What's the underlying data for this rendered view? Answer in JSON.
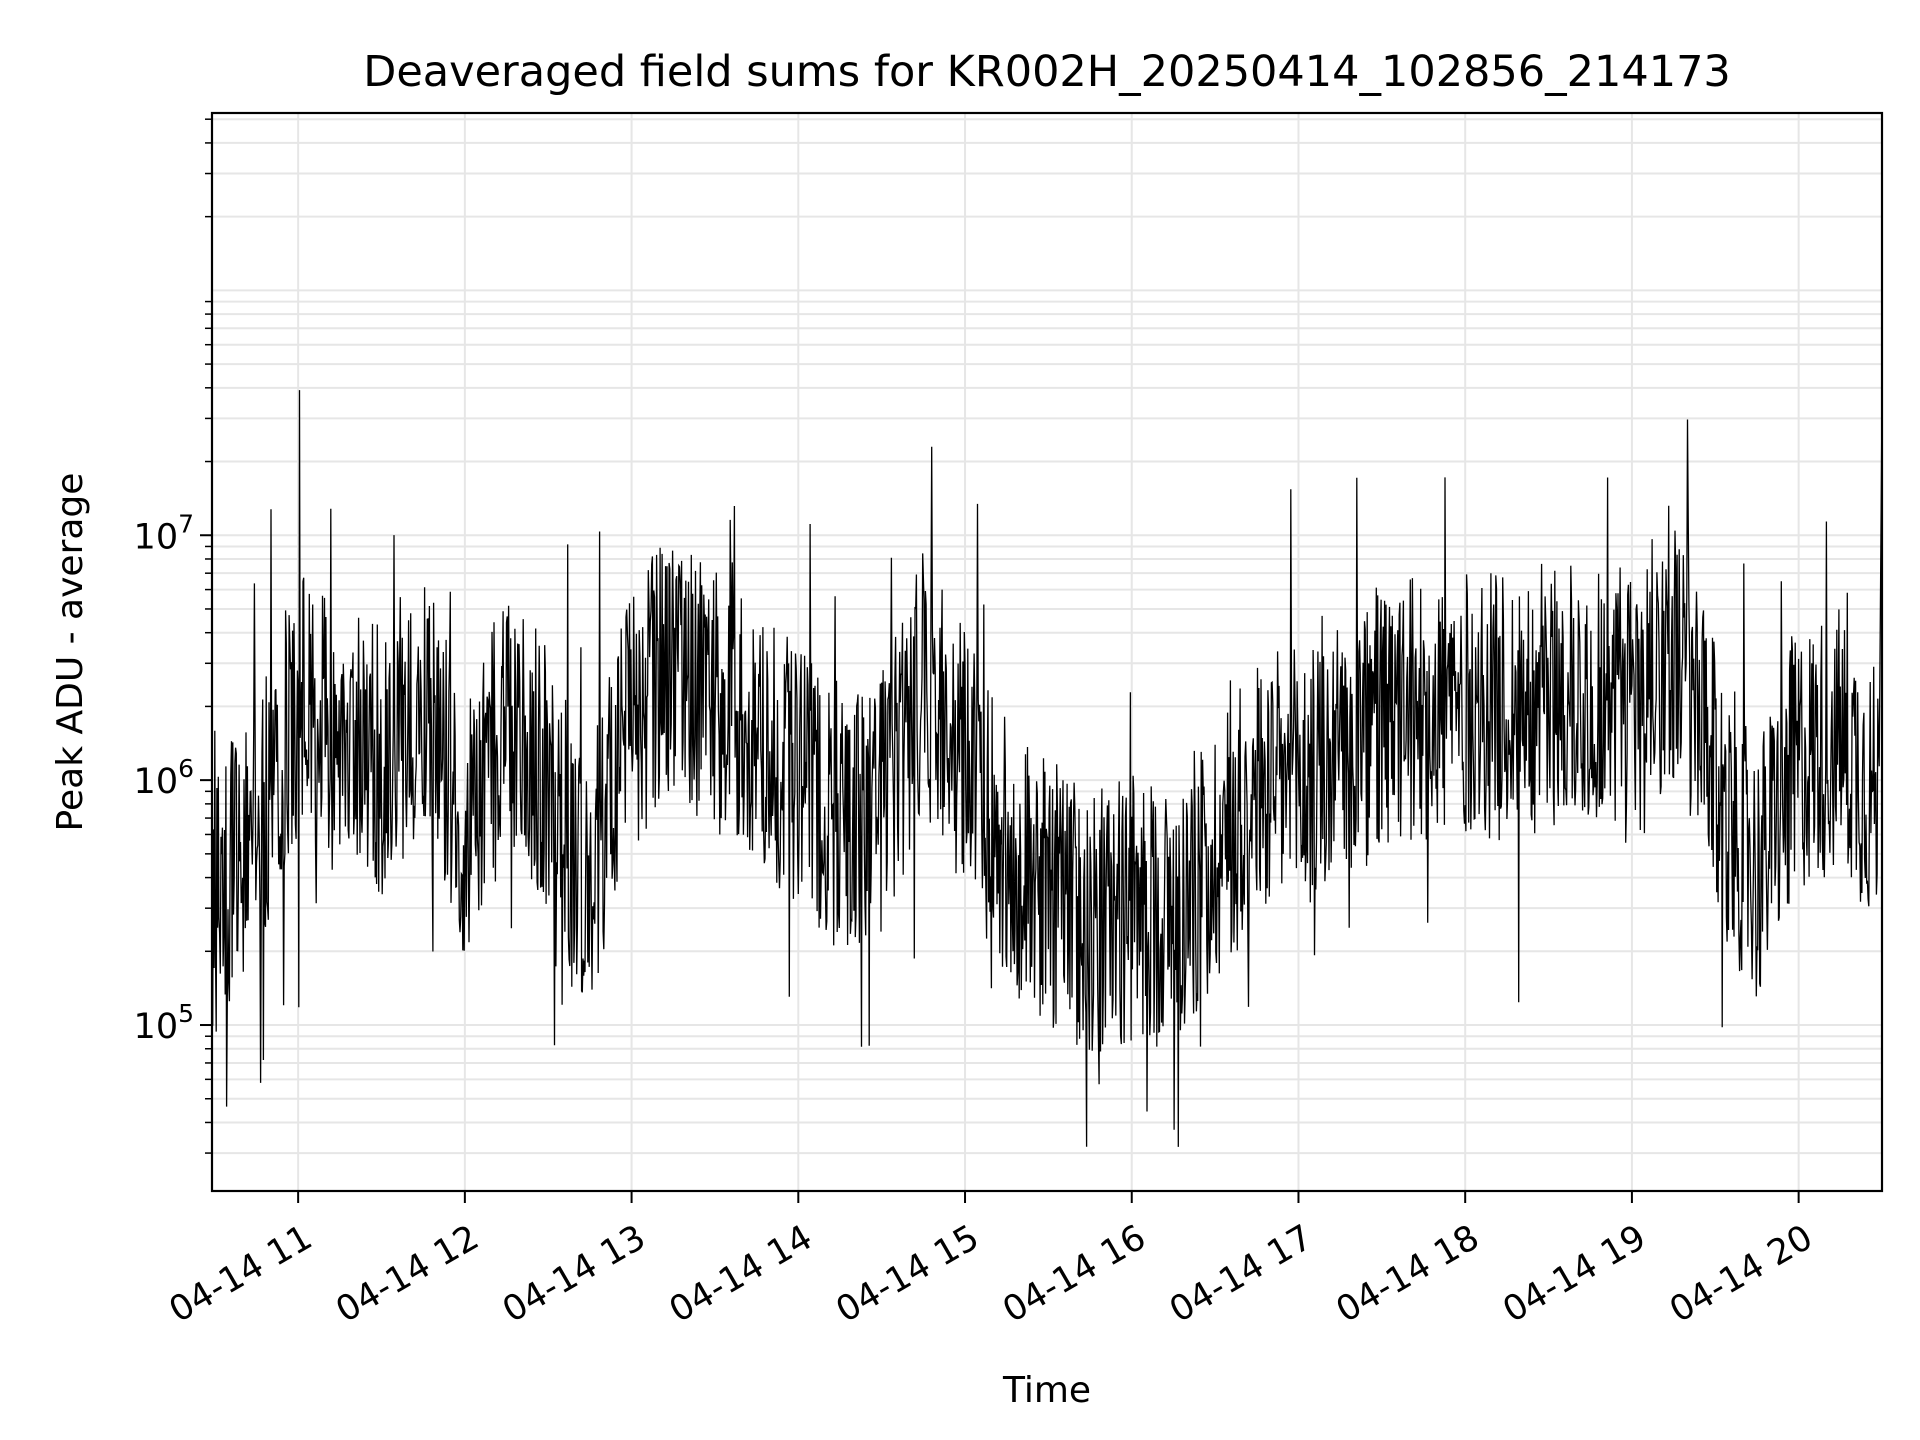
{
  "chart_data": {
    "type": "line",
    "title": "Deaveraged field sums for KR002H_20250414_102856_214173",
    "xlabel": "Time",
    "ylabel": "Peak ADU - average",
    "yscale": "log",
    "ylim": [
      21000,
      530000000
    ],
    "xlim": [
      "2025-04-14 10:29",
      "2025-04-14 20:30"
    ],
    "x_ticks": [
      {
        "t": "2025-04-14 11:00",
        "label": "04-14 11"
      },
      {
        "t": "2025-04-14 12:00",
        "label": "04-14 12"
      },
      {
        "t": "2025-04-14 13:00",
        "label": "04-14 13"
      },
      {
        "t": "2025-04-14 14:00",
        "label": "04-14 14"
      },
      {
        "t": "2025-04-14 15:00",
        "label": "04-14 15"
      },
      {
        "t": "2025-04-14 16:00",
        "label": "04-14 16"
      },
      {
        "t": "2025-04-14 17:00",
        "label": "04-14 17"
      },
      {
        "t": "2025-04-14 18:00",
        "label": "04-14 18"
      },
      {
        "t": "2025-04-14 19:00",
        "label": "04-14 19"
      },
      {
        "t": "2025-04-14 20:00",
        "label": "04-14 20"
      }
    ],
    "y_ticks": [
      {
        "value": 100000,
        "base": "10",
        "exp": "5"
      },
      {
        "value": 1000000,
        "base": "10",
        "exp": "6"
      },
      {
        "value": 10000000,
        "base": "10",
        "exp": "7"
      }
    ],
    "grid": true,
    "line_color": "#000000",
    "series": [
      {
        "x": [
          "2025-04-14 10:29",
          "2025-04-14 10:45",
          "2025-04-14 11:00",
          "2025-04-14 11:15",
          "2025-04-14 11:30",
          "2025-04-14 11:45",
          "2025-04-14 12:00",
          "2025-04-14 12:15",
          "2025-04-14 12:30",
          "2025-04-14 12:45",
          "2025-04-14 13:00",
          "2025-04-14 13:15",
          "2025-04-14 13:30",
          "2025-04-14 13:45",
          "2025-04-14 14:00",
          "2025-04-14 14:15",
          "2025-04-14 14:30",
          "2025-04-14 14:45",
          "2025-04-14 15:00",
          "2025-04-14 15:15",
          "2025-04-14 15:30",
          "2025-04-14 15:45",
          "2025-04-14 16:00",
          "2025-04-14 16:15",
          "2025-04-14 16:30",
          "2025-04-14 16:45",
          "2025-04-14 17:00",
          "2025-04-14 17:15",
          "2025-04-14 17:30",
          "2025-04-14 17:45",
          "2025-04-14 18:00",
          "2025-04-14 18:15",
          "2025-04-14 18:30",
          "2025-04-14 18:45",
          "2025-04-14 19:00",
          "2025-04-14 19:15",
          "2025-04-14 19:30",
          "2025-04-14 19:45",
          "2025-04-14 20:00",
          "2025-04-14 20:15",
          "2025-04-14 20:29",
          "2025-04-14 20:30"
        ],
        "y": [
          300000,
          700000,
          2000000,
          1800000,
          1200000,
          2300000,
          600000,
          1800000,
          1000000,
          350000,
          1800000,
          3000000,
          2200000,
          1400000,
          1000000,
          700000,
          800000,
          2500000,
          1200000,
          500000,
          350000,
          260000,
          300000,
          280000,
          500000,
          900000,
          1000000,
          1200000,
          1600000,
          2000000,
          2000000,
          2000000,
          2200000,
          2200000,
          2300000,
          3500000,
          1000000,
          400000,
          1200000,
          1500000,
          800000,
          37000000
        ]
      }
    ]
  }
}
